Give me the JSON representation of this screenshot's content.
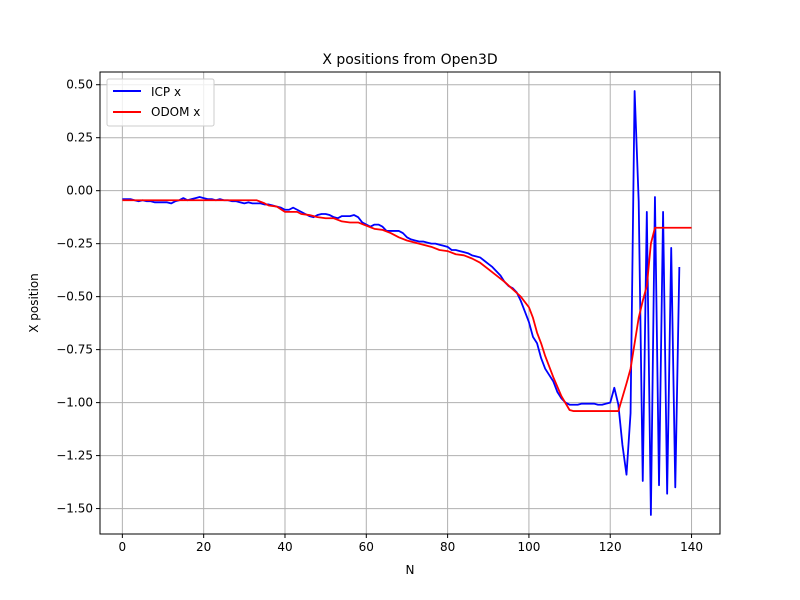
{
  "chart_data": {
    "type": "line",
    "title": "X positions from Open3D",
    "xlabel": "N",
    "ylabel": "X position",
    "xlim": [
      -5.5,
      147
    ],
    "ylim": [
      -1.62,
      0.56
    ],
    "xticks": [
      0,
      20,
      40,
      60,
      80,
      100,
      120,
      140
    ],
    "yticks": [
      0.5,
      0.25,
      0.0,
      -0.25,
      -0.5,
      -0.75,
      -1.0,
      -1.25,
      -1.5
    ],
    "xtick_labels": [
      "0",
      "20",
      "40",
      "60",
      "80",
      "100",
      "120",
      "140"
    ],
    "ytick_labels": [
      "0.50",
      "0.25",
      "0.00",
      "−0.25",
      "−0.50",
      "−0.75",
      "−1.00",
      "−1.25",
      "−1.50"
    ],
    "grid": true,
    "legend": "upper-left",
    "series": [
      {
        "name": "ICP x",
        "color": "#0000ff",
        "x": [
          0,
          1,
          2,
          3,
          4,
          5,
          6,
          7,
          8,
          9,
          10,
          11,
          12,
          13,
          14,
          15,
          16,
          17,
          18,
          19,
          20,
          21,
          22,
          23,
          24,
          25,
          26,
          27,
          28,
          29,
          30,
          31,
          32,
          33,
          34,
          35,
          36,
          37,
          38,
          39,
          40,
          41,
          42,
          43,
          44,
          45,
          46,
          47,
          48,
          49,
          50,
          51,
          52,
          53,
          54,
          55,
          56,
          57,
          58,
          59,
          60,
          61,
          62,
          63,
          64,
          65,
          66,
          67,
          68,
          69,
          70,
          71,
          72,
          73,
          74,
          75,
          76,
          77,
          78,
          79,
          80,
          81,
          82,
          83,
          84,
          85,
          86,
          87,
          88,
          89,
          90,
          91,
          92,
          93,
          94,
          95,
          96,
          97,
          98,
          99,
          100,
          101,
          102,
          103,
          104,
          105,
          106,
          107,
          108,
          109,
          110,
          111,
          112,
          113,
          114,
          115,
          116,
          117,
          118,
          119,
          120,
          121,
          122,
          123,
          124,
          125,
          126,
          127,
          128,
          129,
          130,
          131,
          132,
          133,
          134,
          135,
          136,
          137
        ],
        "y": [
          -0.04,
          -0.04,
          -0.04,
          -0.045,
          -0.05,
          -0.045,
          -0.05,
          -0.05,
          -0.055,
          -0.055,
          -0.055,
          -0.055,
          -0.06,
          -0.05,
          -0.045,
          -0.035,
          -0.045,
          -0.04,
          -0.035,
          -0.03,
          -0.035,
          -0.04,
          -0.04,
          -0.045,
          -0.04,
          -0.045,
          -0.045,
          -0.05,
          -0.05,
          -0.055,
          -0.06,
          -0.055,
          -0.06,
          -0.06,
          -0.06,
          -0.065,
          -0.065,
          -0.07,
          -0.075,
          -0.08,
          -0.09,
          -0.09,
          -0.08,
          -0.09,
          -0.1,
          -0.11,
          -0.12,
          -0.125,
          -0.115,
          -0.11,
          -0.11,
          -0.115,
          -0.125,
          -0.13,
          -0.12,
          -0.12,
          -0.12,
          -0.115,
          -0.125,
          -0.15,
          -0.16,
          -0.17,
          -0.16,
          -0.16,
          -0.17,
          -0.19,
          -0.19,
          -0.19,
          -0.19,
          -0.2,
          -0.22,
          -0.23,
          -0.235,
          -0.24,
          -0.24,
          -0.245,
          -0.25,
          -0.25,
          -0.255,
          -0.26,
          -0.265,
          -0.28,
          -0.28,
          -0.285,
          -0.29,
          -0.295,
          -0.305,
          -0.31,
          -0.315,
          -0.33,
          -0.345,
          -0.36,
          -0.38,
          -0.4,
          -0.43,
          -0.45,
          -0.46,
          -0.48,
          -0.52,
          -0.57,
          -0.62,
          -0.69,
          -0.72,
          -0.79,
          -0.84,
          -0.87,
          -0.9,
          -0.95,
          -0.98,
          -1.0,
          -1.01,
          -1.01,
          -1.01,
          -1.005,
          -1.005,
          -1.005,
          -1.005,
          -1.01,
          -1.01,
          -1.005,
          -1.0,
          -0.93,
          -1.01,
          -1.2,
          -1.34,
          -1.05,
          0.47,
          -0.05,
          -1.37,
          -0.1,
          -1.53,
          -0.03,
          -1.39,
          -0.1,
          -1.43,
          -0.27,
          -1.4,
          -0.36
        ]
      },
      {
        "name": "ODOM x",
        "color": "#ff0000",
        "x": [
          0,
          33,
          35,
          36,
          38,
          40,
          41,
          43,
          44,
          46,
          48,
          50,
          52,
          54,
          56,
          58,
          60,
          62,
          64,
          66,
          68,
          70,
          72,
          74,
          76,
          78,
          80,
          82,
          84,
          86,
          88,
          90,
          92,
          94,
          96,
          98,
          100,
          101,
          102,
          103,
          104,
          106,
          108,
          110,
          111,
          121,
          122,
          124,
          125,
          126,
          127,
          128,
          129,
          130,
          131,
          140
        ],
        "y": [
          -0.045,
          -0.045,
          -0.06,
          -0.07,
          -0.075,
          -0.1,
          -0.1,
          -0.1,
          -0.11,
          -0.115,
          -0.125,
          -0.13,
          -0.13,
          -0.145,
          -0.15,
          -0.15,
          -0.165,
          -0.18,
          -0.185,
          -0.2,
          -0.22,
          -0.235,
          -0.245,
          -0.255,
          -0.265,
          -0.28,
          -0.285,
          -0.3,
          -0.305,
          -0.32,
          -0.34,
          -0.37,
          -0.4,
          -0.43,
          -0.465,
          -0.5,
          -0.55,
          -0.6,
          -0.67,
          -0.72,
          -0.78,
          -0.88,
          -0.97,
          -1.035,
          -1.04,
          -1.04,
          -1.04,
          -0.91,
          -0.84,
          -0.72,
          -0.6,
          -0.52,
          -0.45,
          -0.25,
          -0.175,
          -0.175
        ]
      }
    ]
  }
}
